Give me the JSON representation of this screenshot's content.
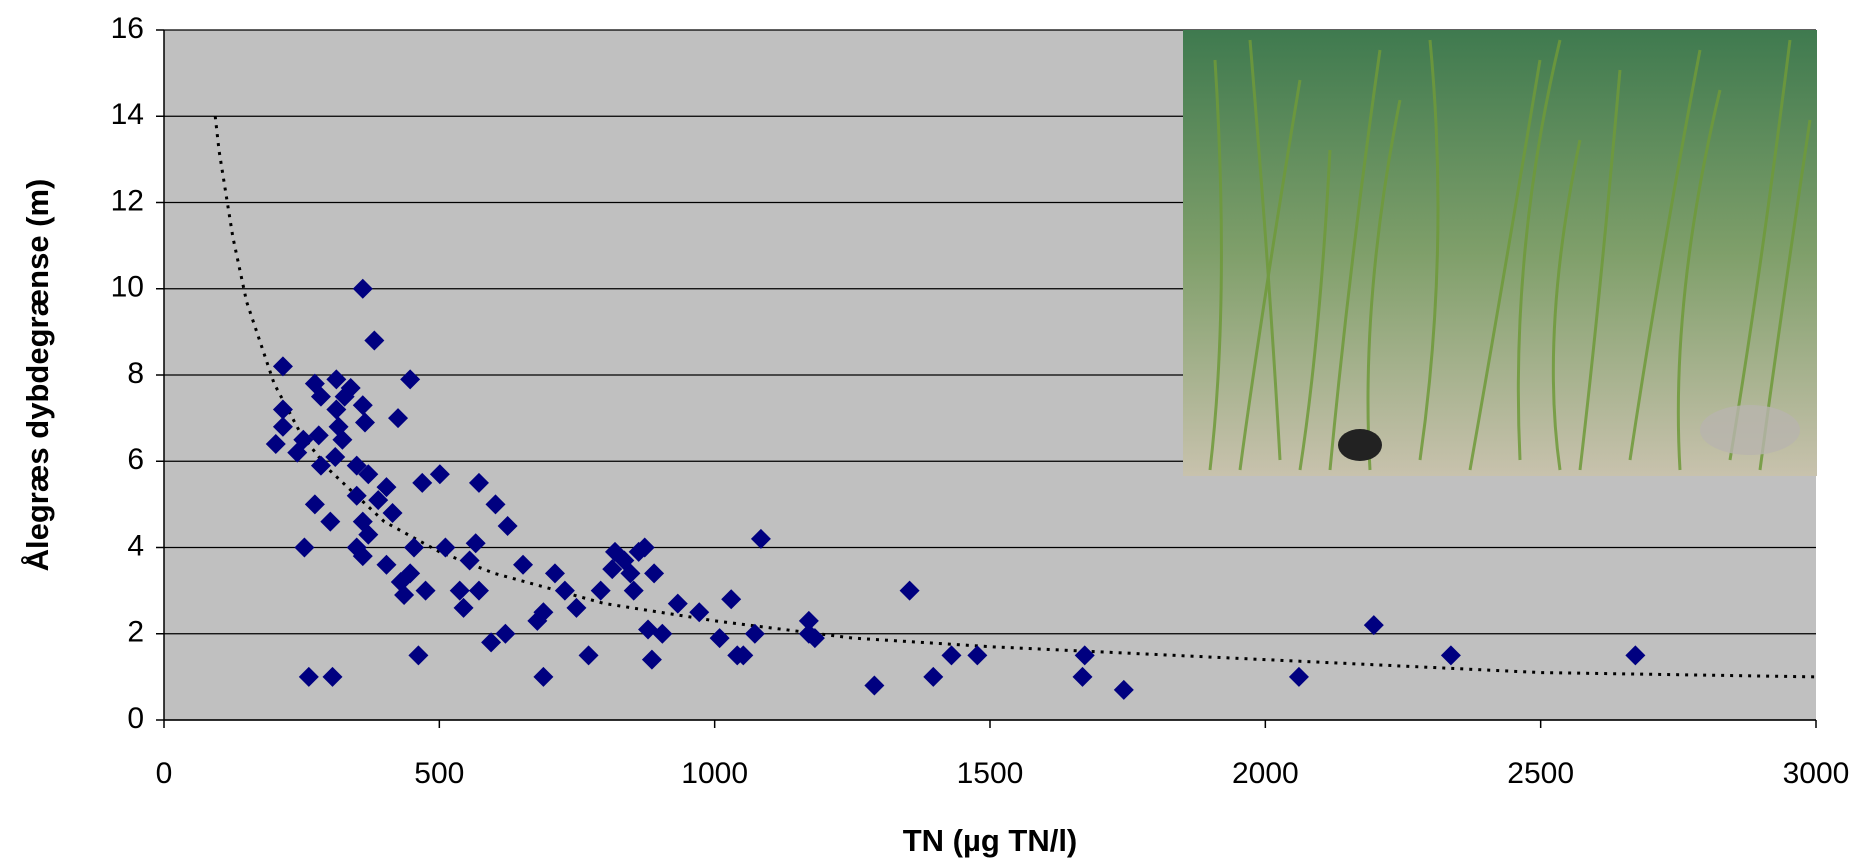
{
  "chart_data": {
    "type": "scatter",
    "x_label": "TN (µg TN/l)",
    "y_label": "Ålegræs dybdegrænse (m)",
    "x": [
      216,
      216,
      216,
      203,
      253,
      242,
      274,
      285,
      313,
      313,
      328,
      339,
      317,
      324,
      281,
      311,
      285,
      350,
      361,
      382,
      447,
      361,
      365,
      425,
      371,
      350,
      389,
      404,
      415,
      361,
      371,
      274,
      302,
      255,
      350,
      361,
      404,
      430,
      436,
      447,
      454,
      469,
      501,
      475,
      511,
      537,
      544,
      555,
      566,
      572,
      572,
      602,
      624,
      594,
      620,
      652,
      678,
      689,
      689,
      710,
      728,
      749,
      771,
      793,
      814,
      819,
      836,
      847,
      853,
      862,
      873,
      890,
      879,
      886,
      905,
      933,
      972,
      1009,
      1030,
      1041,
      1052,
      1073,
      1084,
      1171,
      1171,
      1182,
      1290,
      1354,
      1397,
      1430,
      1477,
      1668,
      1672,
      1743,
      2061,
      2197,
      2337,
      2672,
      263,
      306,
      462
    ],
    "y": [
      8.2,
      7.2,
      6.8,
      6.4,
      6.5,
      6.2,
      7.8,
      7.5,
      7.9,
      7.2,
      7.5,
      7.7,
      6.8,
      6.5,
      6.6,
      6.1,
      5.9,
      5.9,
      10.0,
      8.8,
      7.9,
      7.3,
      6.9,
      7.0,
      5.7,
      5.2,
      5.1,
      5.4,
      4.8,
      4.6,
      4.3,
      5.0,
      4.6,
      4.0,
      4.0,
      3.8,
      3.6,
      3.2,
      2.9,
      3.4,
      4.0,
      5.5,
      5.7,
      3.0,
      4.0,
      3.0,
      2.6,
      3.7,
      4.1,
      3.0,
      5.5,
      5.0,
      4.5,
      1.8,
      2.0,
      3.6,
      2.3,
      2.5,
      1.0,
      3.4,
      3.0,
      2.6,
      1.5,
      3.0,
      3.5,
      3.9,
      3.7,
      3.4,
      3.0,
      3.9,
      4.0,
      3.4,
      2.1,
      1.4,
      2.0,
      2.7,
      2.5,
      1.9,
      2.8,
      1.5,
      1.5,
      2.0,
      4.2,
      2.3,
      2.0,
      1.9,
      0.8,
      3.0,
      1.0,
      1.5,
      1.5,
      1.0,
      1.5,
      0.7,
      1.0,
      2.2,
      1.5,
      1.5,
      1.0,
      1.0,
      1.5
    ],
    "color": "#000080",
    "marker": "diamond",
    "trendline": {
      "x": [
        93,
        100,
        125,
        150,
        200,
        250,
        300,
        400,
        500,
        600,
        800,
        1000,
        1250,
        1500,
        2000,
        2500,
        3000
      ],
      "y": [
        14.0,
        13.2,
        11.2,
        9.7,
        7.8,
        6.6,
        5.8,
        4.6,
        3.9,
        3.4,
        2.7,
        2.3,
        1.9,
        1.7,
        1.4,
        1.1,
        1.0
      ],
      "color": "#000000"
    },
    "xlim": [
      0,
      3000
    ],
    "xticks": [
      0,
      500,
      1000,
      1500,
      2000,
      2500,
      3000
    ],
    "ylim": [
      0,
      16
    ],
    "yticks": [
      0,
      2,
      4,
      6,
      8,
      10,
      12,
      14,
      16
    ],
    "grid": true,
    "background": "#c0c0c0"
  }
}
